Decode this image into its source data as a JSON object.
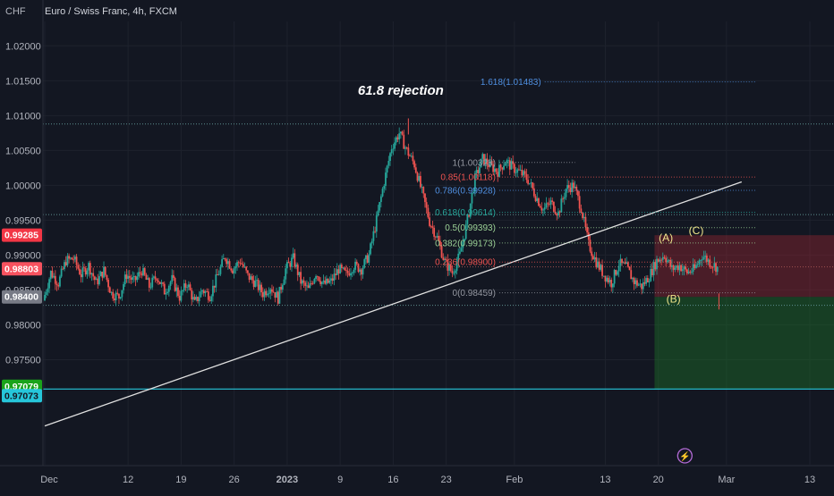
{
  "header": {
    "currency": "CHF",
    "symbol_title": "Euro / Swiss Franc, 4h, FXCM"
  },
  "colors": {
    "background": "#131722",
    "grid": "#1e222d",
    "bull": "#26a69a",
    "bear": "#ef5350",
    "fib_line": "#5d606b",
    "trendline": "#e0e0e0",
    "wave_label": "#f0e68c",
    "stop_zone": "rgba(178,40,51,0.35)",
    "target_zone": "rgba(28,110,40,0.45)",
    "cyan_line": "#26c6da"
  },
  "chart_data": {
    "type": "candlestick",
    "title": "Euro / Swiss Franc, 4h, FXCM",
    "y_axis_label": "CHF",
    "ylim": [
      0.9625,
      1.0235
    ],
    "xlim": [
      1,
      102
    ],
    "y_ticks": [
      "1.02000",
      "1.01500",
      "1.01000",
      "1.00500",
      "1.00000",
      "0.99500",
      "0.99000",
      "0.98500",
      "0.98000",
      "0.97500"
    ],
    "x_ticks": [
      {
        "label": "Dec",
        "x": 1,
        "bold": false
      },
      {
        "label": "12",
        "x": 12,
        "bold": false
      },
      {
        "label": "19",
        "x": 19,
        "bold": false
      },
      {
        "label": "26",
        "x": 26,
        "bold": false
      },
      {
        "label": "2023",
        "x": 33,
        "bold": true
      },
      {
        "label": "9",
        "x": 40,
        "bold": false
      },
      {
        "label": "16",
        "x": 47,
        "bold": false
      },
      {
        "label": "23",
        "x": 54,
        "bold": false
      },
      {
        "label": "Feb",
        "x": 63,
        "bold": false
      },
      {
        "label": "13",
        "x": 75,
        "bold": false
      },
      {
        "label": "20",
        "x": 82,
        "bold": false
      },
      {
        "label": "Mar",
        "x": 91,
        "bold": false
      },
      {
        "label": "13",
        "x": 102,
        "bold": false
      }
    ],
    "price_path": [
      [
        1,
        0.9835
      ],
      [
        2,
        0.9875
      ],
      [
        3,
        0.986
      ],
      [
        4,
        0.9892
      ],
      [
        5,
        0.9895
      ],
      [
        6,
        0.9872
      ],
      [
        7,
        0.9885
      ],
      [
        8,
        0.986
      ],
      [
        9,
        0.9878
      ],
      [
        10,
        0.9845
      ],
      [
        11,
        0.984
      ],
      [
        12,
        0.9872
      ],
      [
        13,
        0.9862
      ],
      [
        14,
        0.9878
      ],
      [
        15,
        0.9855
      ],
      [
        16,
        0.987
      ],
      [
        17,
        0.9848
      ],
      [
        18,
        0.9865
      ],
      [
        19,
        0.984
      ],
      [
        20,
        0.986
      ],
      [
        21,
        0.983
      ],
      [
        22,
        0.985
      ],
      [
        23,
        0.9842
      ],
      [
        24,
        0.987
      ],
      [
        25,
        0.9898
      ],
      [
        26,
        0.988
      ],
      [
        27,
        0.9892
      ],
      [
        28,
        0.987
      ],
      [
        29,
        0.986
      ],
      [
        30,
        0.9845
      ],
      [
        31,
        0.9855
      ],
      [
        32,
        0.9838
      ],
      [
        33,
        0.988
      ],
      [
        34,
        0.9895
      ],
      [
        35,
        0.9862
      ],
      [
        36,
        0.985
      ],
      [
        37,
        0.9875
      ],
      [
        38,
        0.9858
      ],
      [
        39,
        0.9862
      ],
      [
        40,
        0.988
      ],
      [
        41,
        0.9872
      ],
      [
        42,
        0.9885
      ],
      [
        43,
        0.988
      ],
      [
        44,
        0.99
      ],
      [
        45,
        0.995
      ],
      [
        46,
        1.0005
      ],
      [
        47,
        1.0055
      ],
      [
        48,
        1.0075
      ],
      [
        49,
        1.005
      ],
      [
        50,
        1.003
      ],
      [
        51,
        0.999
      ],
      [
        52,
        0.9948
      ],
      [
        53,
        0.9925
      ],
      [
        54,
        0.989
      ],
      [
        55,
        0.9875
      ],
      [
        56,
        0.99
      ],
      [
        57,
        0.995
      ],
      [
        58,
        1.001
      ],
      [
        59,
        1.0038
      ],
      [
        60,
        1.0028
      ],
      [
        61,
        1.002
      ],
      [
        62,
        1.0035
      ],
      [
        63,
        1.0025
      ],
      [
        64,
        1.0018
      ],
      [
        65,
        1.0008
      ],
      [
        66,
        0.9985
      ],
      [
        67,
        0.9965
      ],
      [
        68,
        0.9975
      ],
      [
        69,
        0.996
      ],
      [
        70,
        0.9995
      ],
      [
        71,
        1.0
      ],
      [
        72,
        0.9968
      ],
      [
        73,
        0.9915
      ],
      [
        74,
        0.989
      ],
      [
        75,
        0.9872
      ],
      [
        76,
        0.986
      ],
      [
        77,
        0.9888
      ],
      [
        78,
        0.9882
      ],
      [
        79,
        0.9862
      ],
      [
        80,
        0.9855
      ],
      [
        81,
        0.987
      ],
      [
        82,
        0.9892
      ],
      [
        83,
        0.99
      ],
      [
        84,
        0.988
      ],
      [
        85,
        0.9885
      ],
      [
        86,
        0.9875
      ],
      [
        87,
        0.988
      ],
      [
        88,
        0.99
      ],
      [
        89,
        0.989
      ],
      [
        90,
        0.9882
      ]
    ],
    "extreme_points": [
      {
        "x": 49,
        "y": 1.0096
      },
      {
        "x": 90,
        "y": 0.9845
      }
    ],
    "candles_overlay_region_before": 85,
    "trendline": {
      "x1": 1,
      "y1": 0.9655,
      "x2": 93,
      "y2": 1.0005
    },
    "fib_levels": [
      {
        "label": "1.618(1.01483)",
        "price": 1.01483,
        "x_start": 67,
        "x_end": 95,
        "color": "#4f8fe0"
      },
      {
        "label": "1(1.00328)",
        "price": 1.00328,
        "x_start": 61,
        "x_end": 71,
        "color": "#9598a1"
      },
      {
        "label": "0.85(1.00118)",
        "price": 1.00118,
        "x_start": 61,
        "x_end": 95,
        "color": "#ef5350"
      },
      {
        "label": "0.786(0.99928)",
        "price": 0.99928,
        "x_start": 61,
        "x_end": 95,
        "color": "#4f8fe0"
      },
      {
        "label": "0.618(0.99614)",
        "price": 0.99614,
        "x_start": 61,
        "x_end": 95,
        "color": "#26a69a"
      },
      {
        "label": "0.5(0.99393)",
        "price": 0.99393,
        "x_start": 61,
        "x_end": 95,
        "color": "#9cd296"
      },
      {
        "label": "0.382(0.99173)",
        "price": 0.99173,
        "x_start": 61,
        "x_end": 95,
        "color": "#9cd296"
      },
      {
        "label": "0.236(0.98900)",
        "price": 0.989,
        "x_start": 61,
        "x_end": 95,
        "color": "#ef5350"
      },
      {
        "label": "0(0.98459)",
        "price": 0.98459,
        "x_start": 61,
        "x_end": 95,
        "color": "#9598a1"
      }
    ],
    "horizontal_dotted": [
      {
        "price": 1.0088,
        "x_start": 1,
        "x_end": 108,
        "color": "#5d8f8f"
      },
      {
        "price": 0.9958,
        "x_start": 1,
        "x_end": 108,
        "color": "#5d8f8f"
      },
      {
        "price": 0.9883,
        "x_start": 1,
        "x_end": 108,
        "color": "#a05050"
      },
      {
        "price": 0.9828,
        "x_start": 1,
        "x_end": 108,
        "color": "#5d8f8f"
      }
    ],
    "annotations": [
      {
        "text": "61.8 rejection",
        "x": 48,
        "y": 1.013,
        "color": "#ffffff",
        "size": 15,
        "italic": true,
        "bold": true
      },
      {
        "text": "(A)",
        "x": 83,
        "y": 0.992,
        "color": "#f0e68c",
        "size": 12,
        "italic": false,
        "bold": false
      },
      {
        "text": "(C)",
        "x": 87,
        "y": 0.993,
        "color": "#f0e68c",
        "size": 12,
        "italic": false,
        "bold": false
      },
      {
        "text": "(B)",
        "x": 84,
        "y": 0.9832,
        "color": "#f0e68c",
        "size": 12,
        "italic": false,
        "bold": false
      }
    ],
    "positions": {
      "stop_zone": {
        "x_start": 81.5,
        "x_end": 108,
        "top": 0.99285,
        "bottom": 0.984
      },
      "target_zone": {
        "x_start": 81.5,
        "x_end": 108,
        "top": 0.984,
        "bottom": 0.97079
      }
    },
    "cyan_line_price": 0.97079,
    "price_tags": [
      {
        "label": "0.99285",
        "price": 0.99285,
        "bg": "#f23645",
        "fg": "#ffffff"
      },
      {
        "label": "0.98803",
        "price": 0.98803,
        "bg": "#f7525f",
        "fg": "#ffffff"
      },
      {
        "label": "0.98400",
        "price": 0.984,
        "bg": "#787b86",
        "fg": "#ffffff"
      },
      {
        "label": "0.97079",
        "price": 0.97079,
        "bg": "#1aa31a",
        "fg": "#ffffff"
      },
      {
        "label": "0.97073",
        "price": 0.97073,
        "bg": "#26c6da",
        "fg": "#131722"
      }
    ],
    "event_marker": {
      "x": 85.5,
      "symbol": "⚡"
    }
  }
}
